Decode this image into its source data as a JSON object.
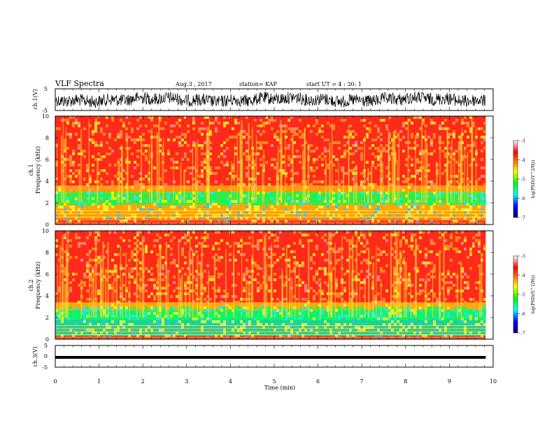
{
  "header": {
    "title": "VLF Spectra",
    "date": "Aug.3 , 2017",
    "station": "station= KAP",
    "start": "start UT = 4 : 30: 1"
  },
  "chart_data": [
    {
      "type": "line",
      "name": "ch1-waveform",
      "ylabel": "ch.1(V)",
      "ylim": [
        -5,
        5
      ],
      "yticks": [
        "5",
        "-5"
      ],
      "xlim": [
        0,
        10
      ],
      "color": "#000000"
    },
    {
      "type": "heatmap",
      "name": "ch1-spectrogram",
      "ylabel_line1": "ch.1",
      "ylabel_line2": "Frequency (kHz)",
      "ylim": [
        0,
        10
      ],
      "yticks": [
        "0",
        "2",
        "4",
        "6",
        "8",
        "10"
      ],
      "xlim": [
        0,
        10
      ],
      "colorbar": {
        "label": "log(PSD)(V^2/Hz)",
        "range": [
          -7,
          -3
        ],
        "ticks": [
          "-3",
          "-4",
          "-5",
          "-6",
          "-7"
        ]
      }
    },
    {
      "type": "heatmap",
      "name": "ch2-spectrogram",
      "ylabel_line1": "ch.2",
      "ylabel_line2": "Frequency (kHz)",
      "ylim": [
        0,
        10
      ],
      "yticks": [
        "0",
        "2",
        "4",
        "6",
        "8",
        "10"
      ],
      "xlim": [
        0,
        10
      ],
      "colorbar": {
        "label": "log(PSD)(V^2/Hz)",
        "range": [
          -7,
          -3
        ],
        "ticks": [
          "-3",
          "-4",
          "-5",
          "-6",
          "-7"
        ]
      }
    },
    {
      "type": "line",
      "name": "ch3-waveform",
      "ylabel": "ch.3(V)",
      "ylim": [
        -5,
        5
      ],
      "yticks": [
        "5",
        "0",
        "-5"
      ],
      "xlim": [
        0,
        10
      ],
      "color": "#000000"
    }
  ],
  "xaxis": {
    "label": "Time (min)",
    "ticks": [
      "0",
      "1",
      "2",
      "3",
      "4",
      "5",
      "6",
      "7",
      "8",
      "9",
      "10"
    ],
    "data_end": 9.83
  },
  "colormap": [
    "#000080",
    "#0000ff",
    "#00ffff",
    "#00ff00",
    "#ffff00",
    "#ff8000",
    "#ff0000",
    "#ffffff"
  ]
}
